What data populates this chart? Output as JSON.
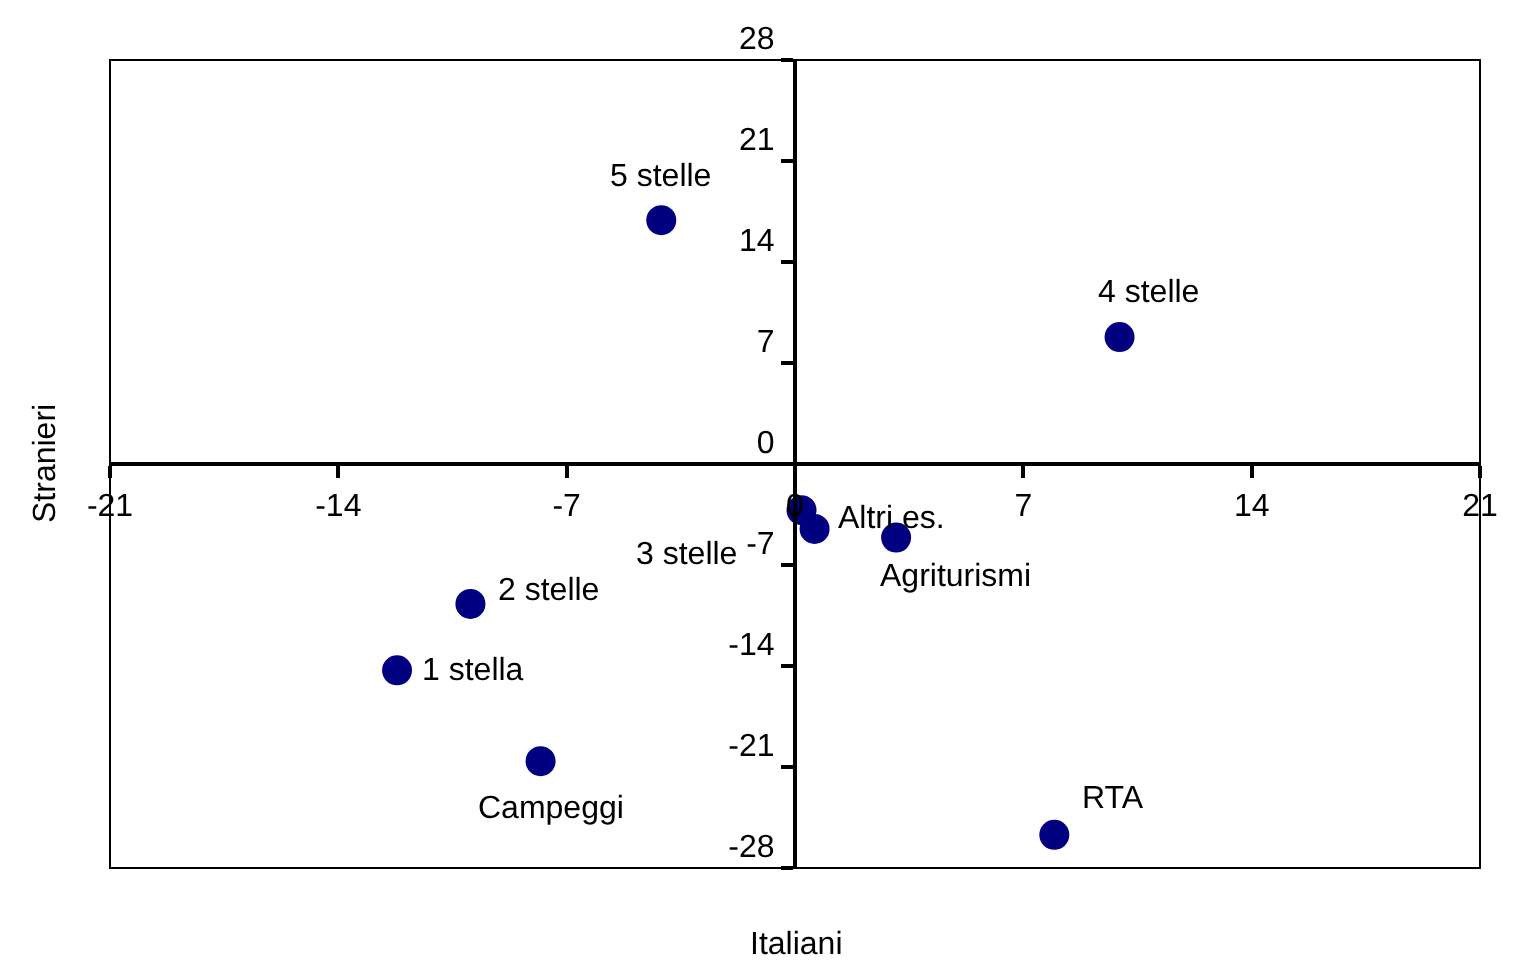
{
  "chart_data": {
    "type": "scatter",
    "xlabel": "Italiani",
    "ylabel": "Stranieri",
    "x": [
      -4.1,
      9.95,
      0.2,
      0.6,
      3.1,
      -9.95,
      -12.2,
      -7.8,
      7.95
    ],
    "series": [
      {
        "color": "#000080",
        "values": [
          16.9,
          8.8,
          -3.2,
          -4.5,
          -5.1,
          -9.7,
          -14.3,
          -20.6,
          -25.7
        ]
      }
    ],
    "annotations": [
      {
        "text": "5 stelle",
        "x": -4.1,
        "y": 16.9
      },
      {
        "text": "4 stelle",
        "x": 9.95,
        "y": 8.8
      },
      {
        "text": "3 stelle",
        "x": 0.2,
        "y": -3.2
      },
      {
        "text": "Altri es.",
        "x": 0.6,
        "y": -4.5
      },
      {
        "text": "Agriturismi",
        "x": 3.1,
        "y": -5.1
      },
      {
        "text": "2 stelle",
        "x": -9.95,
        "y": -9.7
      },
      {
        "text": "1 stella",
        "x": -12.2,
        "y": -14.3
      },
      {
        "text": "Campeggi",
        "x": -7.8,
        "y": -20.6
      },
      {
        "text": "RTA",
        "x": 7.95,
        "y": -25.7
      }
    ],
    "xlim": [
      -21,
      21
    ],
    "ylim": [
      -28,
      28
    ],
    "xticks": [
      -21,
      -14,
      -7,
      0,
      7,
      14,
      21
    ],
    "yticks": [
      -28,
      -21,
      -14,
      -7,
      0,
      7,
      14,
      21,
      28
    ],
    "marker": "circle"
  }
}
